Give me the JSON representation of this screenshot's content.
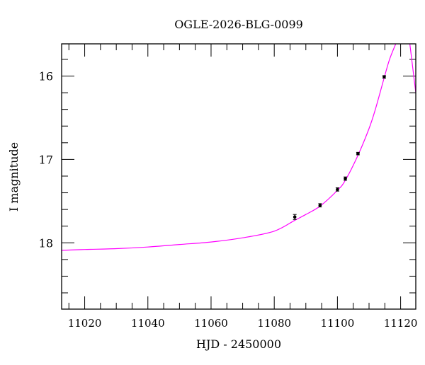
{
  "chart_data": {
    "type": "scatter",
    "title": "OGLE-2026-BLG-0099",
    "xlabel": "HJD - 2450000",
    "ylabel": "I magnitude",
    "xlim": [
      11012.7,
      11124.8
    ],
    "ylim": [
      18.795,
      15.614
    ],
    "y_inverted": true,
    "x_major_ticks": [
      11020,
      11040,
      11060,
      11080,
      11100,
      11120
    ],
    "x_minor_step": 5,
    "y_major_ticks": [
      16,
      17,
      18
    ],
    "y_minor_step": 0.2,
    "grid": false,
    "colors": {
      "points": "#000000",
      "model": "#ff00ff",
      "axes": "#000000"
    },
    "points": [
      {
        "x": 11086.5,
        "y": 17.69,
        "err": 0.03
      },
      {
        "x": 11094.5,
        "y": 17.55,
        "err": 0.02
      },
      {
        "x": 11100.0,
        "y": 17.36,
        "err": 0.02
      },
      {
        "x": 11102.5,
        "y": 17.23,
        "err": 0.02
      },
      {
        "x": 11106.5,
        "y": 16.93,
        "err": 0.015
      },
      {
        "x": 11114.8,
        "y": 16.01,
        "err": 0.015
      }
    ],
    "model_curve": [
      [
        11012.7,
        18.09
      ],
      [
        11020,
        18.08
      ],
      [
        11030,
        18.07
      ],
      [
        11040,
        18.05
      ],
      [
        11050,
        18.02
      ],
      [
        11060,
        17.99
      ],
      [
        11070,
        17.94
      ],
      [
        11080,
        17.86
      ],
      [
        11086.5,
        17.73
      ],
      [
        11090,
        17.66
      ],
      [
        11094.5,
        17.56
      ],
      [
        11100,
        17.37
      ],
      [
        11102.5,
        17.25
      ],
      [
        11106.5,
        16.95
      ],
      [
        11110,
        16.63
      ],
      [
        11112,
        16.4
      ],
      [
        11114.8,
        16.02
      ],
      [
        11116.5,
        15.8
      ],
      [
        11118.5,
        15.61
      ]
    ],
    "model_curve_right": [
      [
        11122.9,
        15.61
      ],
      [
        11124.8,
        16.2
      ]
    ]
  }
}
